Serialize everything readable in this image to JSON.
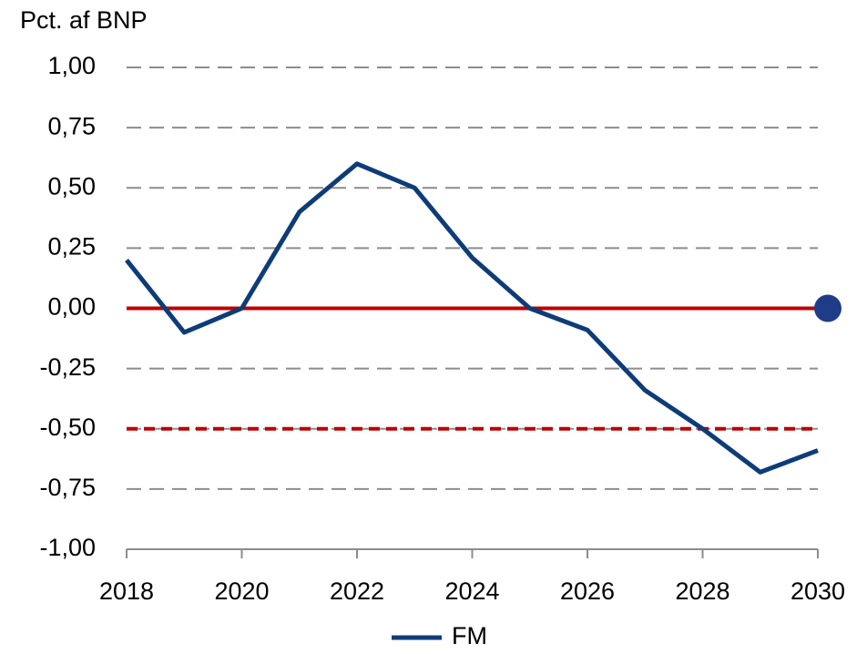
{
  "chart_data": {
    "type": "line",
    "y_axis_label": "Pct. af BNP",
    "x": [
      2018,
      2019,
      2020,
      2021,
      2022,
      2023,
      2024,
      2025,
      2026,
      2027,
      2028,
      2029,
      2030
    ],
    "series": [
      {
        "name": "FM",
        "color": "#0e3c78",
        "values": [
          0.2,
          -0.1,
          0.0,
          0.4,
          0.6,
          0.5,
          0.21,
          0.0,
          -0.09,
          -0.34,
          -0.5,
          -0.68,
          -0.59
        ]
      }
    ],
    "reference_lines": [
      {
        "value": 0,
        "style": "solid",
        "color": "#c00000"
      },
      {
        "value": -0.5,
        "style": "dashed",
        "color": "#c00000"
      }
    ],
    "markers": [
      {
        "x": 2030,
        "y": 0,
        "color": "#1f3c88"
      }
    ],
    "xlim": [
      2018,
      2030
    ],
    "xticks": [
      2018,
      2020,
      2022,
      2024,
      2026,
      2028,
      2030
    ],
    "ylim": [
      -1,
      1
    ],
    "yticks": [
      {
        "value": -1,
        "label": "-1,00"
      },
      {
        "value": -0.75,
        "label": "-0,75"
      },
      {
        "value": -0.5,
        "label": "-0,50"
      },
      {
        "value": -0.25,
        "label": "-0,25"
      },
      {
        "value": 0,
        "label": "0,00"
      },
      {
        "value": 0.25,
        "label": "0,25"
      },
      {
        "value": 0.5,
        "label": "0,50"
      },
      {
        "value": 0.75,
        "label": "0,75"
      },
      {
        "value": 1,
        "label": "1,00"
      }
    ],
    "grid": true,
    "legend": "bottom"
  }
}
